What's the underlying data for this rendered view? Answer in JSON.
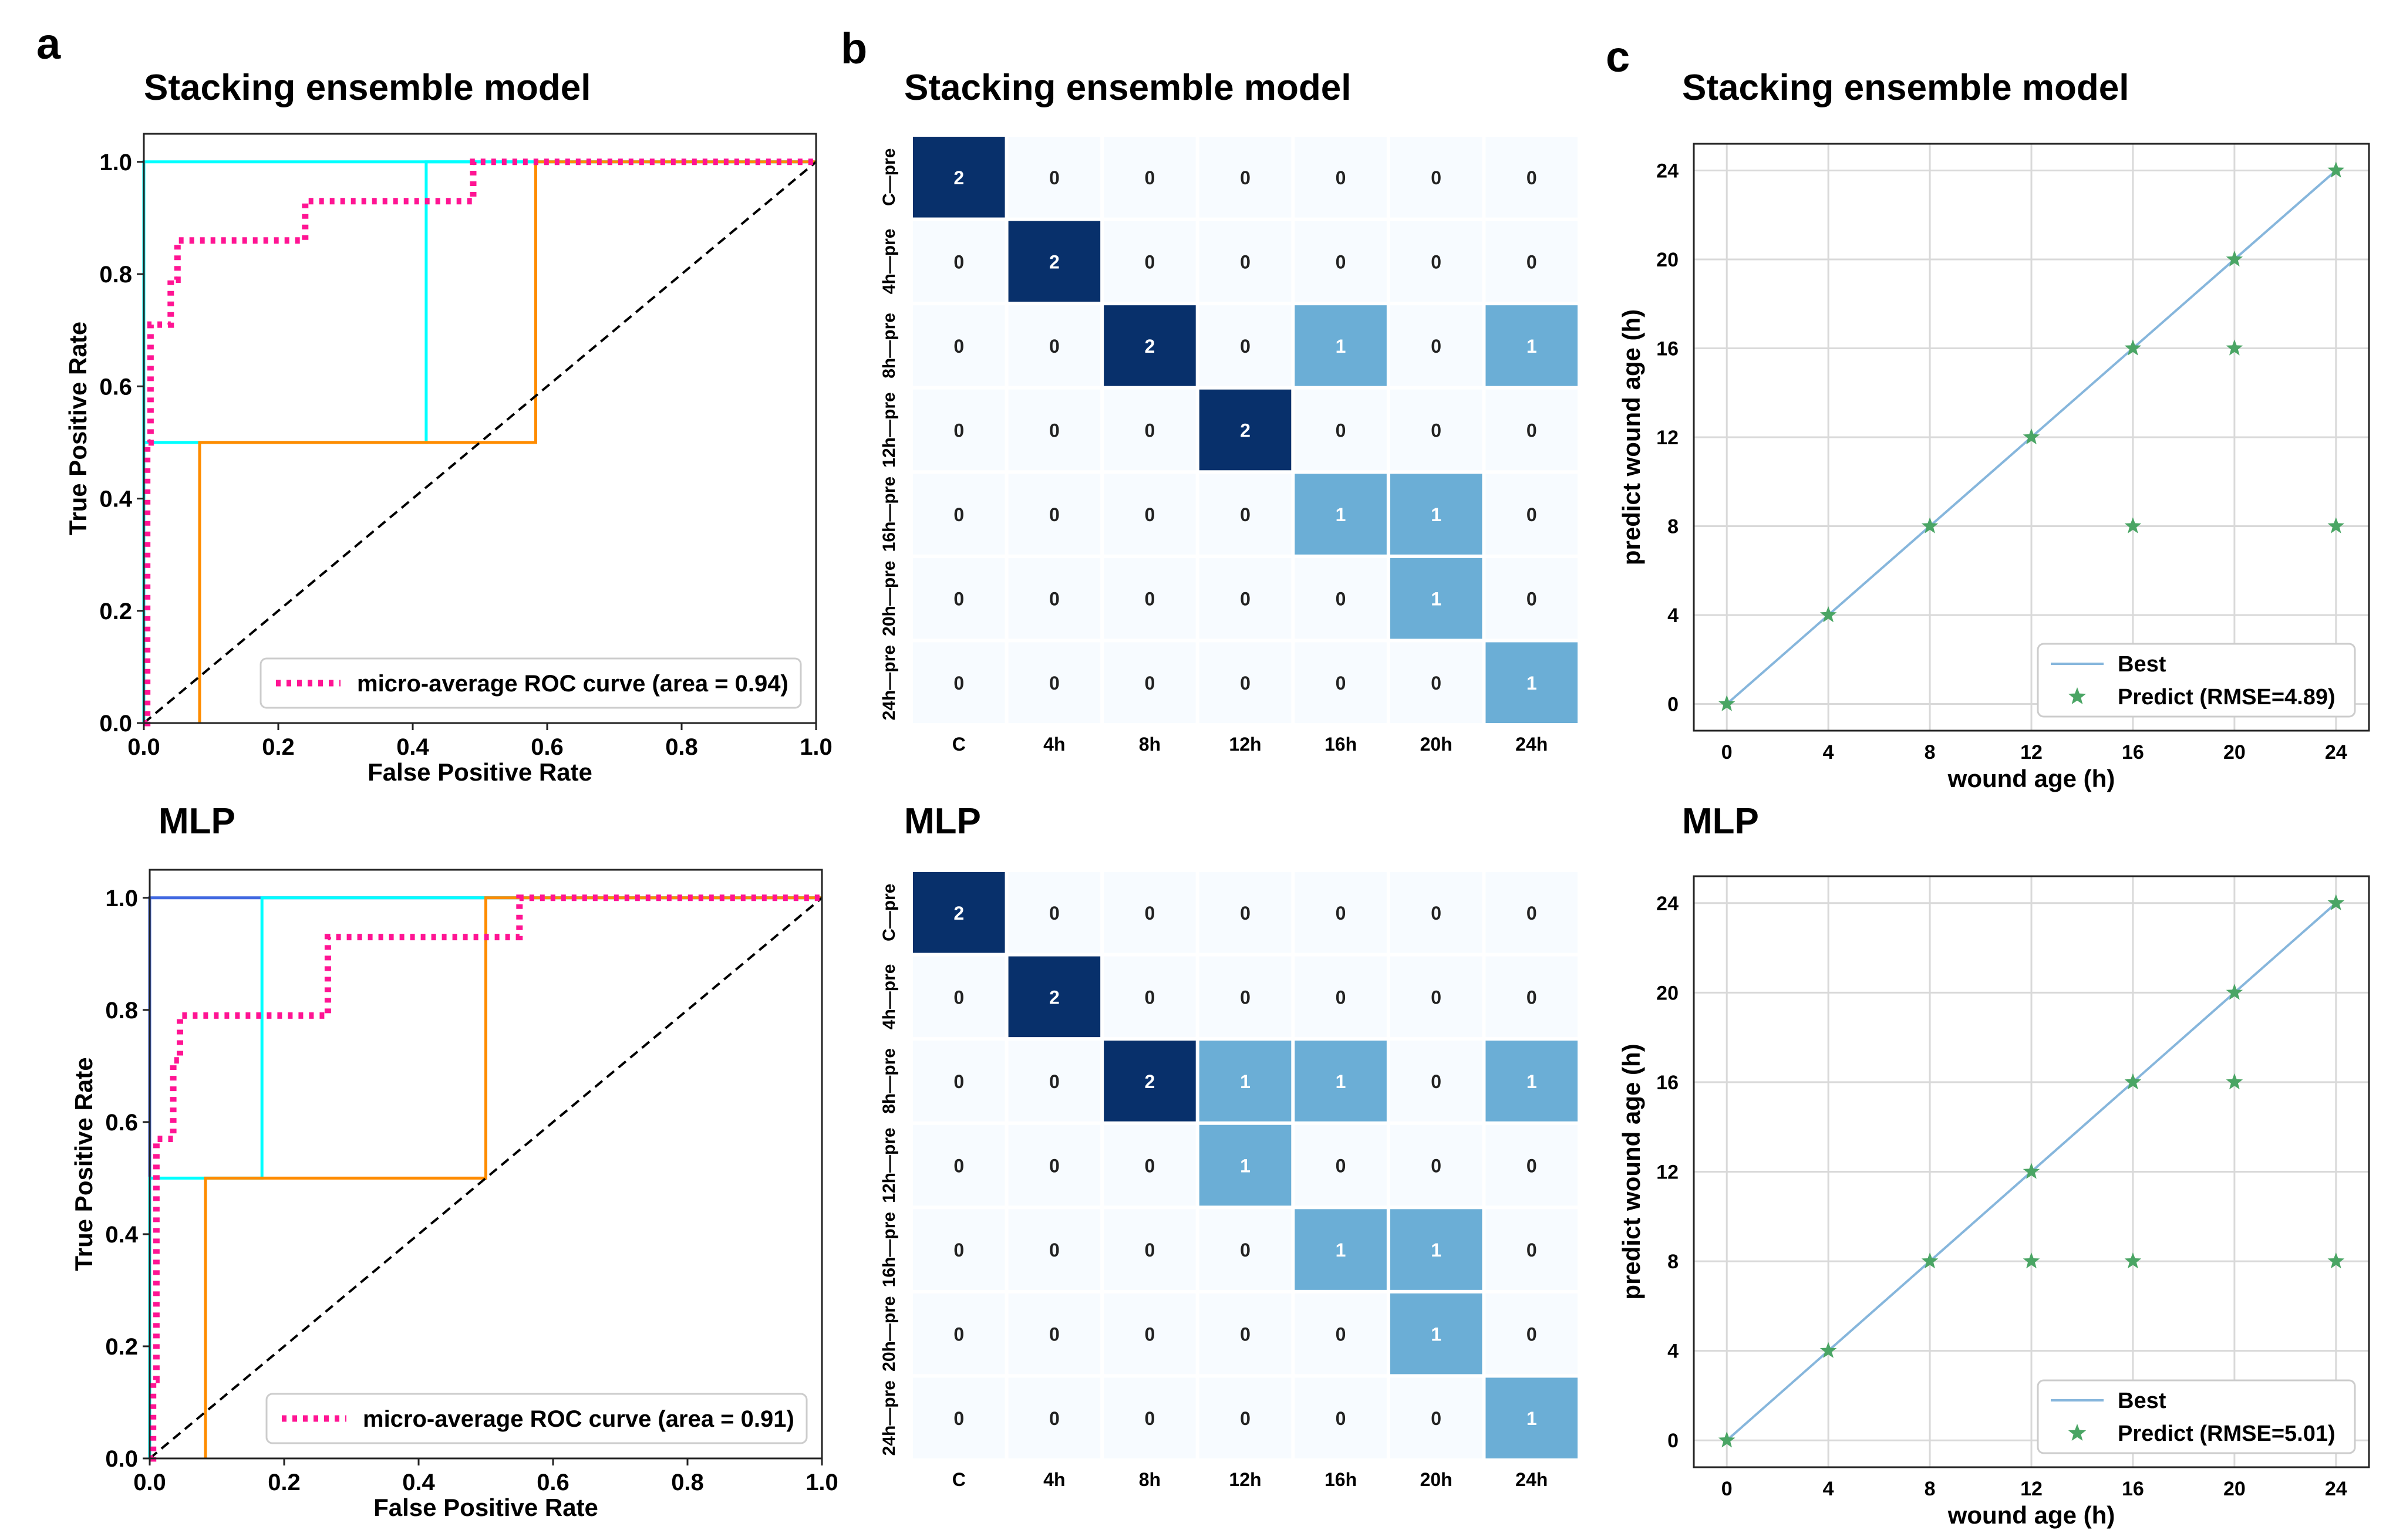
{
  "figure": {
    "panel_labels": [
      "a",
      "b",
      "c"
    ],
    "colors": {
      "micro": "#ff1493",
      "cyan": "#00ffff",
      "orange": "#ff8c00",
      "blue": "#4169e1",
      "diag": "#000000",
      "cm_dark": "#08306b",
      "cm_mid": "#6baed6",
      "cm_light": "#f7fbff",
      "best": "#86b6dc",
      "star": "#4aa564",
      "grid": "#d9d9d9"
    }
  },
  "chart_data": [
    {
      "id": "roc_stacking",
      "type": "line",
      "title": "Stacking ensemble model",
      "xlabel": "False Positive Rate",
      "ylabel": "True Positive Rate",
      "xlim": [
        0,
        1
      ],
      "ylim": [
        0,
        1.05
      ],
      "xticks": [
        "0.0",
        "0.2",
        "0.4",
        "0.6",
        "0.8",
        "1.0"
      ],
      "yticks": [
        "0.0",
        "0.2",
        "0.4",
        "0.6",
        "0.8",
        "1.0"
      ],
      "legend": "lower-right",
      "series": [
        {
          "name": "class-cyan",
          "role": "cyan",
          "x": [
            0,
            0,
            0.42,
            0.42,
            1
          ],
          "y": [
            0,
            0.5,
            0.5,
            1.0,
            1.0
          ]
        },
        {
          "name": "class-cyan-2",
          "role": "cyan",
          "x": [
            0,
            0,
            1
          ],
          "y": [
            0,
            1.0,
            1.0
          ]
        },
        {
          "name": "class-orange",
          "role": "orange",
          "x": [
            0.083,
            0.083,
            0.583,
            0.583,
            1
          ],
          "y": [
            0,
            0.5,
            0.5,
            1.0,
            1.0
          ]
        },
        {
          "name": "diagonal",
          "role": "diag",
          "x": [
            0,
            1
          ],
          "y": [
            0,
            1
          ]
        },
        {
          "name": "micro-average ROC curve (area = 0.94)",
          "role": "micro",
          "x": [
            0,
            0.005,
            0.005,
            0.01,
            0.01,
            0.04,
            0.04,
            0.05,
            0.05,
            0.07,
            0.07,
            0.24,
            0.24,
            0.49,
            0.49,
            1
          ],
          "y": [
            0,
            0,
            0.5,
            0.5,
            0.71,
            0.71,
            0.79,
            0.79,
            0.86,
            0.86,
            0.86,
            0.86,
            0.93,
            0.93,
            1.0,
            1.0
          ]
        }
      ]
    },
    {
      "id": "roc_mlp",
      "type": "line",
      "title": "MLP",
      "xlabel": "False Positive Rate",
      "ylabel": "True Positive Rate",
      "xlim": [
        0,
        1
      ],
      "ylim": [
        0,
        1.05
      ],
      "xticks": [
        "0.0",
        "0.2",
        "0.4",
        "0.6",
        "0.8",
        "1.0"
      ],
      "yticks": [
        "0.0",
        "0.2",
        "0.4",
        "0.6",
        "0.8",
        "1.0"
      ],
      "legend": "lower-right",
      "series": [
        {
          "name": "class-blue",
          "role": "blue",
          "x": [
            0,
            0,
            1
          ],
          "y": [
            0,
            1.0,
            1.0
          ]
        },
        {
          "name": "class-cyan",
          "role": "cyan",
          "x": [
            0,
            0,
            0.167,
            0.167,
            1
          ],
          "y": [
            0,
            0.5,
            0.5,
            1.0,
            1.0
          ]
        },
        {
          "name": "class-orange",
          "role": "orange",
          "x": [
            0.083,
            0.083,
            0.5,
            0.5,
            1
          ],
          "y": [
            0,
            0.5,
            0.5,
            1.0,
            1.0
          ]
        },
        {
          "name": "diagonal",
          "role": "diag",
          "x": [
            0,
            1
          ],
          "y": [
            0,
            1
          ]
        },
        {
          "name": "micro-average ROC curve (area = 0.91)",
          "role": "micro",
          "x": [
            0,
            0.005,
            0.005,
            0.01,
            0.01,
            0.02,
            0.02,
            0.035,
            0.035,
            0.045,
            0.045,
            0.265,
            0.265,
            0.55,
            0.55,
            1
          ],
          "y": [
            0,
            0,
            0.14,
            0.14,
            0.57,
            0.57,
            0.57,
            0.57,
            0.71,
            0.71,
            0.79,
            0.79,
            0.93,
            0.93,
            1.0,
            1.0
          ]
        }
      ]
    },
    {
      "id": "cm_stacking",
      "type": "heatmap",
      "title": "Stacking ensemble model",
      "columns": [
        "C",
        "4h",
        "8h",
        "12h",
        "16h",
        "20h",
        "24h"
      ],
      "rows": [
        "C—pre",
        "4h—pre",
        "8h—pre",
        "12h—pre",
        "16h—pre",
        "20h—pre",
        "24h—pre"
      ],
      "values": [
        [
          2,
          0,
          0,
          0,
          0,
          0,
          0
        ],
        [
          0,
          2,
          0,
          0,
          0,
          0,
          0
        ],
        [
          0,
          0,
          2,
          0,
          1,
          0,
          1
        ],
        [
          0,
          0,
          0,
          2,
          0,
          0,
          0
        ],
        [
          0,
          0,
          0,
          0,
          1,
          1,
          0
        ],
        [
          0,
          0,
          0,
          0,
          0,
          1,
          0
        ],
        [
          0,
          0,
          0,
          0,
          0,
          0,
          1
        ]
      ]
    },
    {
      "id": "cm_mlp",
      "type": "heatmap",
      "title": "MLP",
      "columns": [
        "C",
        "4h",
        "8h",
        "12h",
        "16h",
        "20h",
        "24h"
      ],
      "rows": [
        "C—pre",
        "4h—pre",
        "8h—pre",
        "12h—pre",
        "16h—pre",
        "20h—pre",
        "24h—pre"
      ],
      "values": [
        [
          2,
          0,
          0,
          0,
          0,
          0,
          0
        ],
        [
          0,
          2,
          0,
          0,
          0,
          0,
          0
        ],
        [
          0,
          0,
          2,
          1,
          1,
          0,
          1
        ],
        [
          0,
          0,
          0,
          1,
          0,
          0,
          0
        ],
        [
          0,
          0,
          0,
          0,
          1,
          1,
          0
        ],
        [
          0,
          0,
          0,
          0,
          0,
          1,
          0
        ],
        [
          0,
          0,
          0,
          0,
          0,
          0,
          1
        ]
      ]
    },
    {
      "id": "scatter_stacking",
      "type": "scatter",
      "title": "Stacking ensemble model",
      "xlabel": "wound age (h)",
      "ylabel": "predict wound age (h)",
      "xlim": [
        -1.3,
        25.3
      ],
      "ylim": [
        -1.2,
        25.2
      ],
      "ticks": [
        0,
        4,
        8,
        12,
        16,
        20,
        24
      ],
      "legend": "lower-right",
      "best_label": "Best",
      "predict_label": "Predict (RMSE=4.89)",
      "best_x": [
        0,
        24
      ],
      "best_y": [
        0,
        24
      ],
      "x": [
        0,
        4,
        8,
        12,
        16,
        20,
        24,
        20,
        16,
        24
      ],
      "y": [
        0,
        4,
        8,
        12,
        16,
        20,
        24,
        16,
        8,
        8
      ]
    },
    {
      "id": "scatter_mlp",
      "type": "scatter",
      "title": "MLP",
      "xlabel": "wound age (h)",
      "ylabel": "predict wound age (h)",
      "xlim": [
        -1.3,
        25.3
      ],
      "ylim": [
        -1.2,
        25.2
      ],
      "ticks": [
        0,
        4,
        8,
        12,
        16,
        20,
        24
      ],
      "legend": "lower-right",
      "best_label": "Best",
      "predict_label": "Predict (RMSE=5.01)",
      "best_x": [
        0,
        24
      ],
      "best_y": [
        0,
        24
      ],
      "x": [
        0,
        4,
        8,
        12,
        16,
        20,
        24,
        20,
        12,
        16,
        24
      ],
      "y": [
        0,
        4,
        8,
        12,
        16,
        20,
        24,
        16,
        8,
        8,
        8
      ]
    }
  ]
}
